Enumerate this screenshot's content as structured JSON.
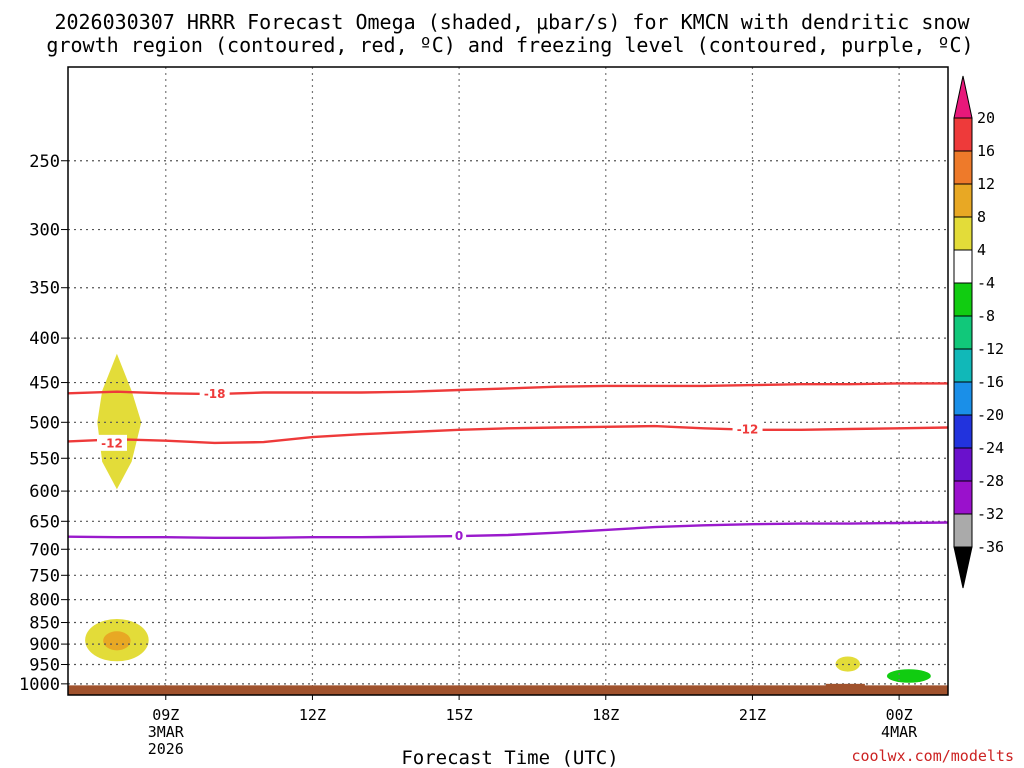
{
  "title_line1": "2026030307 HRRR Forecast Omega (shaded, μbar/s) for KMCN with dendritic snow",
  "title_line2": "growth region (contoured, red, ºC) and freezing level (contoured, purple, ºC)",
  "credit": "coolwx.com/modelts",
  "chart_data": {
    "type": "time-height cross section",
    "xlabel": "Forecast Time (UTC)",
    "ylabel": "",
    "x_range_hours": [
      7.0,
      25.0
    ],
    "y_range_hpa": [
      1030,
      195
    ],
    "y_scale": "log-pressure",
    "grid": true,
    "y_ticks": [
      250,
      300,
      350,
      400,
      450,
      500,
      550,
      600,
      650,
      700,
      750,
      800,
      850,
      900,
      950,
      1000
    ],
    "x_ticks": [
      {
        "hour": 9,
        "line1": "09Z",
        "line2": "3MAR",
        "line3": "2026"
      },
      {
        "hour": 12,
        "line1": "12Z",
        "line2": "",
        "line3": ""
      },
      {
        "hour": 15,
        "line1": "15Z",
        "line2": "",
        "line3": ""
      },
      {
        "hour": 18,
        "line1": "18Z",
        "line2": "",
        "line3": ""
      },
      {
        "hour": 21,
        "line1": "21Z",
        "line2": "",
        "line3": ""
      },
      {
        "hour": 24,
        "line1": "00Z",
        "line2": "4MAR",
        "line3": ""
      }
    ],
    "contours": [
      {
        "name": "dendritic-minus-18",
        "label": "-18",
        "color": "#ee3a3a",
        "label_at": [
          10.0,
          463
        ],
        "points": [
          [
            7,
            463
          ],
          [
            8,
            461
          ],
          [
            9,
            463
          ],
          [
            10,
            464
          ],
          [
            11,
            462
          ],
          [
            12,
            462
          ],
          [
            13,
            462
          ],
          [
            14,
            461
          ],
          [
            15,
            459
          ],
          [
            16,
            457
          ],
          [
            17,
            455
          ],
          [
            18,
            454
          ],
          [
            19,
            454
          ],
          [
            20,
            454
          ],
          [
            21,
            453
          ],
          [
            22,
            452
          ],
          [
            23,
            452
          ],
          [
            24,
            451
          ],
          [
            25,
            451
          ]
        ]
      },
      {
        "name": "dendritic-minus-12",
        "label": "-12",
        "color": "#ee3a3a",
        "label_at": [
          7.9,
          528
        ],
        "label_at2": [
          20.9,
          509
        ],
        "points": [
          [
            7,
            526
          ],
          [
            8,
            523
          ],
          [
            9,
            525
          ],
          [
            10,
            528
          ],
          [
            11,
            527
          ],
          [
            12,
            520
          ],
          [
            13,
            516
          ],
          [
            14,
            513
          ],
          [
            15,
            510
          ],
          [
            16,
            508
          ],
          [
            17,
            507
          ],
          [
            18,
            506
          ],
          [
            19,
            505
          ],
          [
            20,
            508
          ],
          [
            21,
            510
          ],
          [
            22,
            510
          ],
          [
            23,
            509
          ],
          [
            24,
            508
          ],
          [
            25,
            507
          ]
        ]
      },
      {
        "name": "freezing-level-0",
        "label": "0",
        "color": "#9a1acc",
        "label_at": [
          15.0,
          675
        ],
        "points": [
          [
            7,
            677
          ],
          [
            8,
            678
          ],
          [
            9,
            678
          ],
          [
            10,
            679
          ],
          [
            11,
            679
          ],
          [
            12,
            678
          ],
          [
            13,
            678
          ],
          [
            14,
            677
          ],
          [
            15,
            676
          ],
          [
            16,
            674
          ],
          [
            17,
            670
          ],
          [
            18,
            665
          ],
          [
            19,
            660
          ],
          [
            20,
            657
          ],
          [
            21,
            655
          ],
          [
            22,
            654
          ],
          [
            23,
            654
          ],
          [
            24,
            653
          ],
          [
            25,
            652
          ]
        ]
      }
    ],
    "omega_regions": [
      {
        "name": "omega-upper-yellow",
        "value_range": [
          4,
          8
        ],
        "color": "#e3dc39",
        "points": [
          [
            8.0,
            417
          ],
          [
            8.3,
            460
          ],
          [
            8.5,
            500
          ],
          [
            8.3,
            555
          ],
          [
            8.0,
            597
          ],
          [
            7.7,
            555
          ],
          [
            7.6,
            500
          ],
          [
            7.7,
            460
          ]
        ]
      },
      {
        "name": "omega-lower-yellow",
        "value_range": [
          4,
          8
        ],
        "color": "#e3dc39",
        "ellipse": {
          "cx": 8.0,
          "cy": 891,
          "rx_hours": 0.65,
          "top": 842,
          "bottom": 942
        }
      },
      {
        "name": "omega-lower-orange",
        "value_range": [
          8,
          12
        ],
        "color": "#e8a824",
        "ellipse": {
          "cx": 8.0,
          "cy": 893,
          "rx_hours": 0.28,
          "top": 870,
          "bottom": 915
        }
      },
      {
        "name": "omega-small-yellow",
        "value_range": [
          4,
          8
        ],
        "color": "#e3dc39",
        "ellipse": {
          "cx": 22.95,
          "cy": 948,
          "rx_hours": 0.25,
          "top": 930,
          "bottom": 968
        }
      },
      {
        "name": "omega-green",
        "value_range": [
          -8,
          -4
        ],
        "color": "#11cc11",
        "ellipse": {
          "cx": 24.2,
          "cy": 980,
          "rx_hours": 0.45,
          "top": 962,
          "bottom": 997
        }
      }
    ],
    "terrain": {
      "color": "#a0522d",
      "top_hpa": 1004,
      "bump": {
        "start": 22.5,
        "end": 23.3,
        "top_hpa": 1000
      }
    },
    "colorbar": {
      "units": "μbar/s",
      "top_extend_color": "#e8187a",
      "bottom_extend_color": "#000000",
      "segments": [
        {
          "from": 16,
          "to": 20,
          "color": "#ee3a3a"
        },
        {
          "from": 12,
          "to": 16,
          "color": "#ee7a2a"
        },
        {
          "from": 8,
          "to": 12,
          "color": "#e8a824"
        },
        {
          "from": 4,
          "to": 8,
          "color": "#e3dc39"
        },
        {
          "from": -4,
          "to": 4,
          "color": "#ffffff"
        },
        {
          "from": -8,
          "to": -4,
          "color": "#11cc11"
        },
        {
          "from": -12,
          "to": -8,
          "color": "#11c87a"
        },
        {
          "from": -16,
          "to": -12,
          "color": "#11b8b8"
        },
        {
          "from": -20,
          "to": -16,
          "color": "#1a8fe8"
        },
        {
          "from": -24,
          "to": -20,
          "color": "#2233dd"
        },
        {
          "from": -28,
          "to": -24,
          "color": "#6a11cc"
        },
        {
          "from": -32,
          "to": -28,
          "color": "#9a11cc"
        },
        {
          "from": -36,
          "to": -32,
          "color": "#aaaaaa"
        }
      ],
      "labels": [
        "20",
        "16",
        "12",
        "8",
        "4",
        "-4",
        "-8",
        "-12",
        "-16",
        "-20",
        "-24",
        "-28",
        "-32",
        "-36"
      ]
    }
  }
}
